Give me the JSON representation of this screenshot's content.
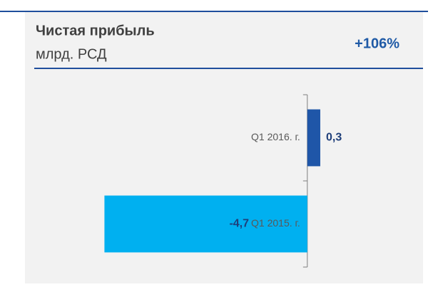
{
  "chart_data": {
    "type": "hbar",
    "title": "Чистая прибыль",
    "subtitle": "млрд. РСД",
    "annotation": "+106%",
    "categories": [
      "Q1 2016. г.",
      "Q1 2015. г."
    ],
    "values": [
      0.3,
      -4.7
    ],
    "value_labels": [
      "0,3",
      "-4,7"
    ],
    "colors": [
      "#1f56a8",
      "#00b0f0"
    ],
    "xlim": [
      -5.5,
      2.3
    ]
  }
}
